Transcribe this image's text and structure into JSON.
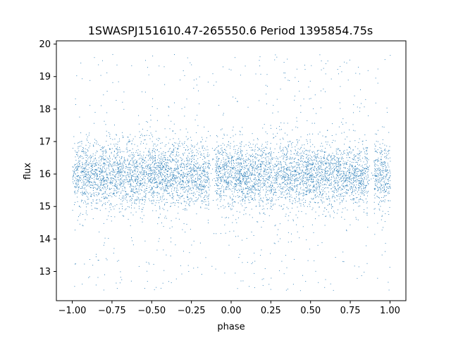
{
  "chart_data": {
    "type": "scatter",
    "title": "1SWASPJ151610.47-265550.6 Period 1395854.75s",
    "xlabel": "phase",
    "ylabel": "flux",
    "xlim": [
      -1.1,
      1.1
    ],
    "ylim": [
      12.1,
      20.1
    ],
    "xticks": [
      -1.0,
      -0.75,
      -0.5,
      -0.25,
      0.0,
      0.25,
      0.5,
      0.75,
      1.0
    ],
    "xtick_labels": [
      "−1.00",
      "−0.75",
      "−0.50",
      "−0.25",
      "0.00",
      "0.25",
      "0.50",
      "0.75",
      "1.00"
    ],
    "yticks": [
      13,
      14,
      15,
      16,
      17,
      18,
      19,
      20
    ],
    "ytick_labels": [
      "13",
      "14",
      "15",
      "16",
      "17",
      "18",
      "19",
      "20"
    ],
    "grid": false,
    "legend": "none",
    "marker_color": "#1f77b4",
    "x_range": [
      -1.0,
      1.0
    ],
    "flux_median": 16.0,
    "flux_core_range": [
      15.0,
      17.0
    ],
    "flux_full_range": [
      12.4,
      19.7
    ],
    "gap_phases": [
      -0.12,
      0.88
    ],
    "series": [
      {
        "values_summary": "dense scatter of flux vs. phase, centered near 16 with a core band of ~15–17 and sparse outliers from ~12.4 to ~19.7; vertical gaps near phase −0.12 and 0.88"
      }
    ]
  }
}
